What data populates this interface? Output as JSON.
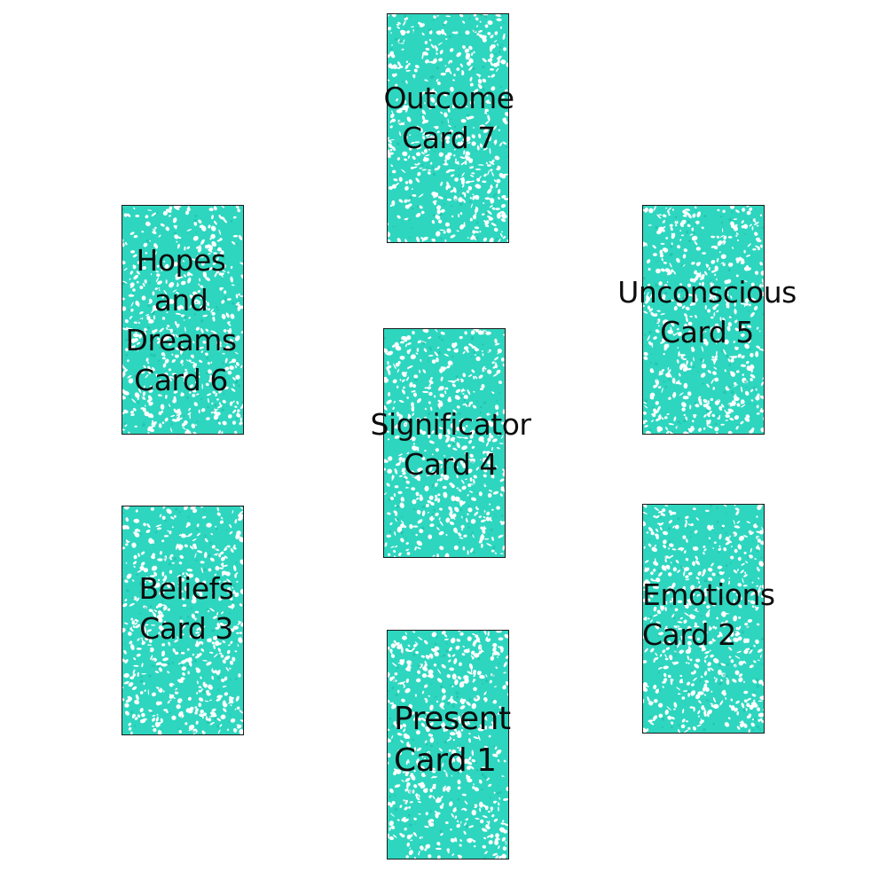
{
  "layout_title": "",
  "colors": {
    "card_base": "#ffffff",
    "card_pattern": "#2ed6bf",
    "card_pattern_dark": "#1fb9a5",
    "text": "#0d0d0d"
  },
  "cards": [
    {
      "id": "card-1",
      "position": "Present",
      "card": "Card 1"
    },
    {
      "id": "card-2",
      "position": "Emotions",
      "card": "Card 2"
    },
    {
      "id": "card-3",
      "position": "Beliefs",
      "card": "Card 3"
    },
    {
      "id": "card-4",
      "position": "Significator",
      "card": "Card 4"
    },
    {
      "id": "card-5",
      "position": "Unconscious",
      "card": "Card 5"
    },
    {
      "id": "card-6",
      "position": "Hopes and Dreams",
      "position_lines": [
        "Hopes",
        "and",
        "Dreams"
      ],
      "card": "Card 6"
    },
    {
      "id": "card-7",
      "position": "Outcome",
      "card": "Card 7"
    }
  ]
}
